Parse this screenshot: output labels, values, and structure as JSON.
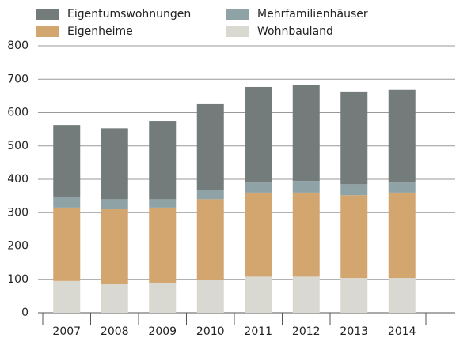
{
  "chart_data": {
    "type": "stacked_bar",
    "categories": [
      "2007",
      "2008",
      "2009",
      "2010",
      "2011",
      "2012",
      "2013",
      "2014"
    ],
    "series": [
      {
        "name": "Wohnbauland",
        "color": "#d9d9d1",
        "values": [
          95,
          85,
          90,
          98,
          108,
          108,
          104,
          104
        ]
      },
      {
        "name": "Eigenheime",
        "color": "#d3a670",
        "values": [
          220,
          225,
          225,
          242,
          252,
          252,
          248,
          256
        ]
      },
      {
        "name": "Mehrfamilienhäuser",
        "color": "#8fa2a5",
        "values": [
          33,
          30,
          25,
          28,
          30,
          35,
          33,
          30
        ]
      },
      {
        "name": "Eigentumswohnungen",
        "color": "#747b7b",
        "values": [
          215,
          213,
          235,
          257,
          287,
          289,
          278,
          278
        ]
      }
    ],
    "ylim": [
      0,
      800
    ],
    "yticks": [
      0,
      100,
      200,
      300,
      400,
      500,
      600,
      700,
      800
    ],
    "grid": true
  }
}
